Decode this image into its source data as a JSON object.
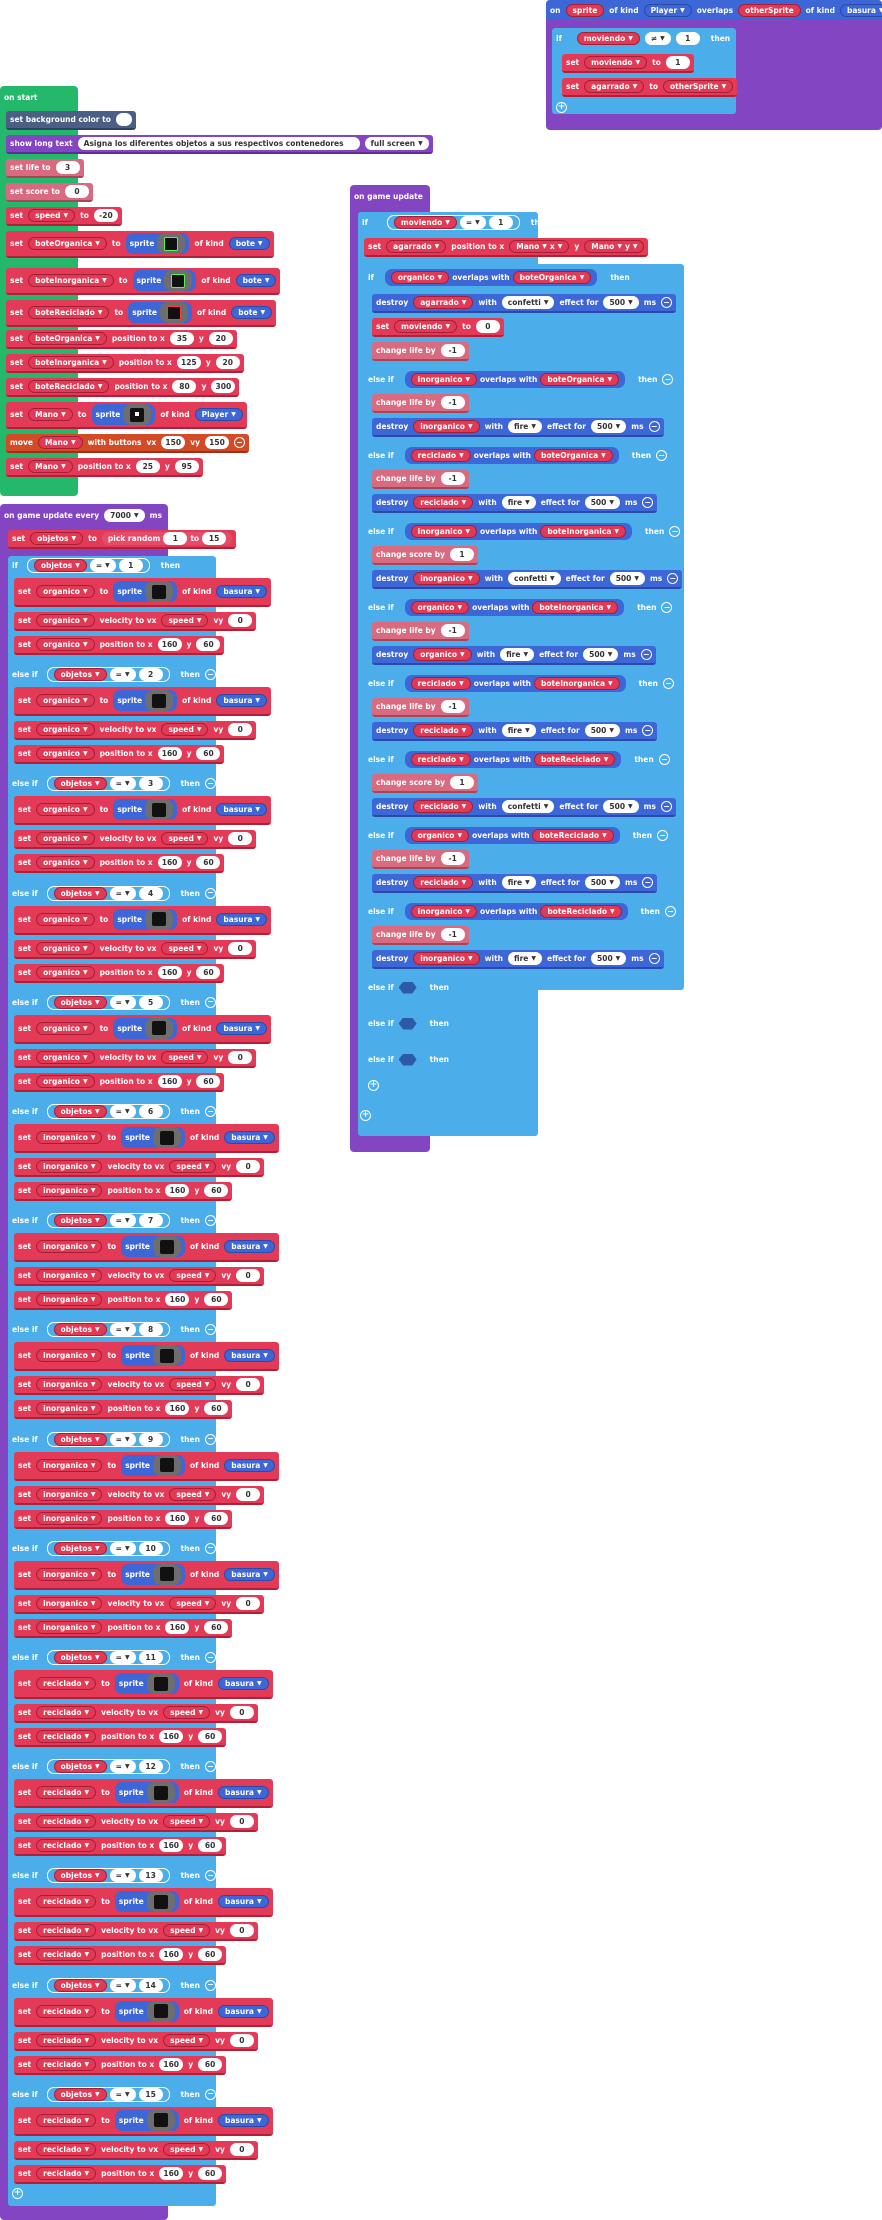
{
  "colors": {
    "sprites": "#e33b57",
    "events": "#8445c3",
    "logic": "#4cadeb",
    "loops": "#24b96a",
    "scene": "#4a5f83",
    "info": "#d96b80",
    "controller": "#d14b27"
  },
  "overlap_event": {
    "on": "on",
    "sprite_var": "sprite",
    "of_kind": "of kind",
    "kind1": "Player",
    "overlaps": "overlaps",
    "other_var": "otherSprite",
    "kind2": "basura",
    "if": "if",
    "moviendo": "moviendo",
    "neq": "≠",
    "one": "1",
    "then": "then",
    "set": "set",
    "to": "to",
    "agarrado": "agarrado",
    "otherSprite": "otherSprite"
  },
  "on_start": {
    "header": "on start",
    "bg": "set background color to",
    "long_text": "show long text",
    "long_text_value": "Asigna los diferentes objetos a sus respectivos contenedores",
    "full_screen": "full screen",
    "life": "set life to",
    "life_val": "3",
    "score": "set score to",
    "score_val": "0",
    "set": "set",
    "to": "to",
    "speed": "speed",
    "speed_val": "-20",
    "sprite": "sprite",
    "of_kind": "of kind",
    "bote": "bote",
    "player": "Player",
    "boteOrganica": "boteOrganica",
    "boteInorganica": "boteInorganica",
    "boteReciclado": "boteReciclado",
    "mano": "Mano",
    "position_x": "position to x",
    "y": "y",
    "pos1": [
      "35",
      "20"
    ],
    "pos2": [
      "125",
      "20"
    ],
    "pos3": [
      "80",
      "300"
    ],
    "pos_mano": [
      "25",
      "95"
    ],
    "move": "move",
    "with_buttons": "with buttons",
    "vx": "vx",
    "vy": "vy",
    "move_vals": [
      "150",
      "150"
    ]
  },
  "game_update_every": {
    "header": "on game update every",
    "ms_val": "7000",
    "ms": "ms",
    "set": "set",
    "objetos": "objetos",
    "to": "to",
    "pick_random": "pick random",
    "rand_from": "1",
    "rand_to": "15",
    "if": "if",
    "else_if": "else if",
    "eq": "=",
    "then": "then",
    "sprite": "sprite",
    "of_kind": "of kind",
    "basura": "basura",
    "velocity": "velocity to vx",
    "vy": "vy",
    "speed": "speed",
    "zero": "0",
    "position": "position to x",
    "y": "y",
    "px": "160",
    "py": "60",
    "branches": [
      {
        "n": "1",
        "var": "organico"
      },
      {
        "n": "2",
        "var": "organico"
      },
      {
        "n": "3",
        "var": "organico"
      },
      {
        "n": "4",
        "var": "organico"
      },
      {
        "n": "5",
        "var": "organico"
      },
      {
        "n": "6",
        "var": "inorganico"
      },
      {
        "n": "7",
        "var": "inorganico"
      },
      {
        "n": "8",
        "var": "inorganico"
      },
      {
        "n": "9",
        "var": "inorganico"
      },
      {
        "n": "10",
        "var": "inorganico"
      },
      {
        "n": "11",
        "var": "reciclado"
      },
      {
        "n": "12",
        "var": "reciclado"
      },
      {
        "n": "13",
        "var": "reciclado"
      },
      {
        "n": "14",
        "var": "reciclado"
      },
      {
        "n": "15",
        "var": "reciclado"
      }
    ]
  },
  "game_update": {
    "header": "on game update",
    "if": "if",
    "else_if": "else if",
    "then": "then",
    "eq": "=",
    "one": "1",
    "moviendo": "moviendo",
    "set": "set",
    "agarrado": "agarrado",
    "position": "position to x",
    "mano": "Mano",
    "x": "x",
    "y": "y",
    "overlaps": "overlaps with",
    "destroy": "destroy",
    "with": "with",
    "effect_for": "effect for",
    "ms": "ms",
    "ms_val": "500",
    "to": "to",
    "zero": "0",
    "change_score": "change score by",
    "change_life": "change life by",
    "plus1": "1",
    "minus1": "-1",
    "organico": "organico",
    "inorganico": "inorganico",
    "reciclado": "reciclado",
    "boteOrganica": "boteOrganica",
    "boteInorganica": "boteInorganica",
    "boteReciclado": "boteReciclado",
    "confetti": "confetti",
    "fire": "fire"
  }
}
